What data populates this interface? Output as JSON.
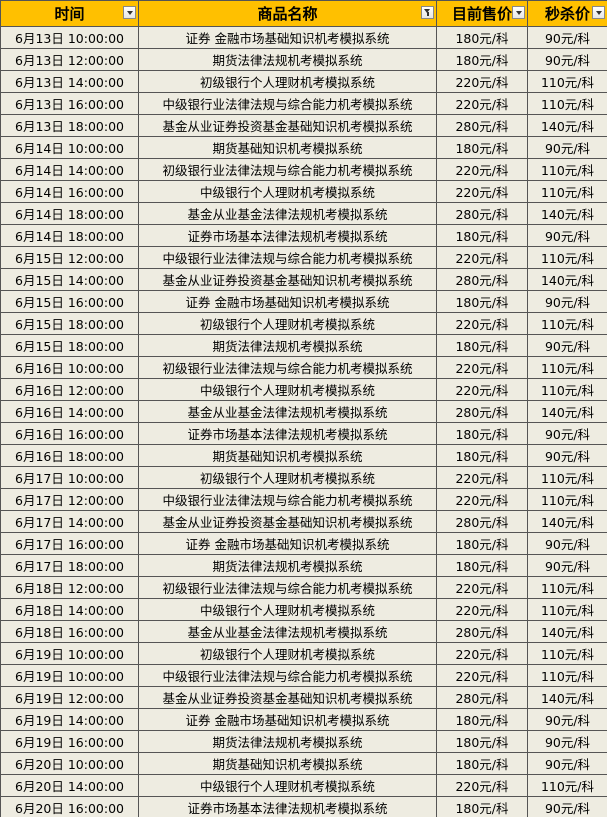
{
  "table": {
    "header": [
      "时间",
      "商品名称",
      "目前售价",
      "秒杀价"
    ],
    "rows": [
      [
        "6月13日 10:00:00",
        "证券 金融市场基础知识机考模拟系统",
        "180元/科",
        "90元/科"
      ],
      [
        "6月13日 12:00:00",
        "期货法律法规机考模拟系统",
        "180元/科",
        "90元/科"
      ],
      [
        "6月13日 14:00:00",
        "初级银行个人理财机考模拟系统",
        "220元/科",
        "110元/科"
      ],
      [
        "6月13日 16:00:00",
        "中级银行业法律法规与综合能力机考模拟系统",
        "220元/科",
        "110元/科"
      ],
      [
        "6月13日 18:00:00",
        "基金从业证券投资基金基础知识机考模拟系统",
        "280元/科",
        "140元/科"
      ],
      [
        "6月14日 10:00:00",
        "期货基础知识机考模拟系统",
        "180元/科",
        "90元/科"
      ],
      [
        "6月14日 14:00:00",
        "初级银行业法律法规与综合能力机考模拟系统",
        "220元/科",
        "110元/科"
      ],
      [
        "6月14日 16:00:00",
        "中级银行个人理财机考模拟系统",
        "220元/科",
        "110元/科"
      ],
      [
        "6月14日 18:00:00",
        "基金从业基金法律法规机考模拟系统",
        "280元/科",
        "140元/科"
      ],
      [
        "6月14日 18:00:00",
        "证券市场基本法律法规机考模拟系统",
        "180元/科",
        "90元/科"
      ],
      [
        "6月15日 12:00:00",
        "中级银行业法律法规与综合能力机考模拟系统",
        "220元/科",
        "110元/科"
      ],
      [
        "6月15日 14:00:00",
        "基金从业证券投资基金基础知识机考模拟系统",
        "280元/科",
        "140元/科"
      ],
      [
        "6月15日 16:00:00",
        "证券 金融市场基础知识机考模拟系统",
        "180元/科",
        "90元/科"
      ],
      [
        "6月15日 18:00:00",
        "初级银行个人理财机考模拟系统",
        "220元/科",
        "110元/科"
      ],
      [
        "6月15日 18:00:00",
        "期货法律法规机考模拟系统",
        "180元/科",
        "90元/科"
      ],
      [
        "6月16日 10:00:00",
        "初级银行业法律法规与综合能力机考模拟系统",
        "220元/科",
        "110元/科"
      ],
      [
        "6月16日 12:00:00",
        "中级银行个人理财机考模拟系统",
        "220元/科",
        "110元/科"
      ],
      [
        "6月16日 14:00:00",
        "基金从业基金法律法规机考模拟系统",
        "280元/科",
        "140元/科"
      ],
      [
        "6月16日 16:00:00",
        "证券市场基本法律法规机考模拟系统",
        "180元/科",
        "90元/科"
      ],
      [
        "6月16日 18:00:00",
        "期货基础知识机考模拟系统",
        "180元/科",
        "90元/科"
      ],
      [
        "6月17日 10:00:00",
        "初级银行个人理财机考模拟系统",
        "220元/科",
        "110元/科"
      ],
      [
        "6月17日 12:00:00",
        "中级银行业法律法规与综合能力机考模拟系统",
        "220元/科",
        "110元/科"
      ],
      [
        "6月17日 14:00:00",
        "基金从业证券投资基金基础知识机考模拟系统",
        "280元/科",
        "140元/科"
      ],
      [
        "6月17日 16:00:00",
        "证券 金融市场基础知识机考模拟系统",
        "180元/科",
        "90元/科"
      ],
      [
        "6月17日 18:00:00",
        "期货法律法规机考模拟系统",
        "180元/科",
        "90元/科"
      ],
      [
        "6月18日 12:00:00",
        "初级银行业法律法规与综合能力机考模拟系统",
        "220元/科",
        "110元/科"
      ],
      [
        "6月18日 14:00:00",
        "中级银行个人理财机考模拟系统",
        "220元/科",
        "110元/科"
      ],
      [
        "6月18日 16:00:00",
        "基金从业基金法律法规机考模拟系统",
        "280元/科",
        "140元/科"
      ],
      [
        "6月19日 10:00:00",
        "初级银行个人理财机考模拟系统",
        "220元/科",
        "110元/科"
      ],
      [
        "6月19日 10:00:00",
        "中级银行业法律法规与综合能力机考模拟系统",
        "220元/科",
        "110元/科"
      ],
      [
        "6月19日 12:00:00",
        "基金从业证券投资基金基础知识机考模拟系统",
        "280元/科",
        "140元/科"
      ],
      [
        "6月19日 14:00:00",
        "证券 金融市场基础知识机考模拟系统",
        "180元/科",
        "90元/科"
      ],
      [
        "6月19日 16:00:00",
        "期货法律法规机考模拟系统",
        "180元/科",
        "90元/科"
      ],
      [
        "6月20日 10:00:00",
        "期货基础知识机考模拟系统",
        "180元/科",
        "90元/科"
      ],
      [
        "6月20日 14:00:00",
        "中级银行个人理财机考模拟系统",
        "220元/科",
        "110元/科"
      ],
      [
        "6月20日 16:00:00",
        "证券市场基本法律法规机考模拟系统",
        "180元/科",
        "90元/科"
      ]
    ]
  }
}
